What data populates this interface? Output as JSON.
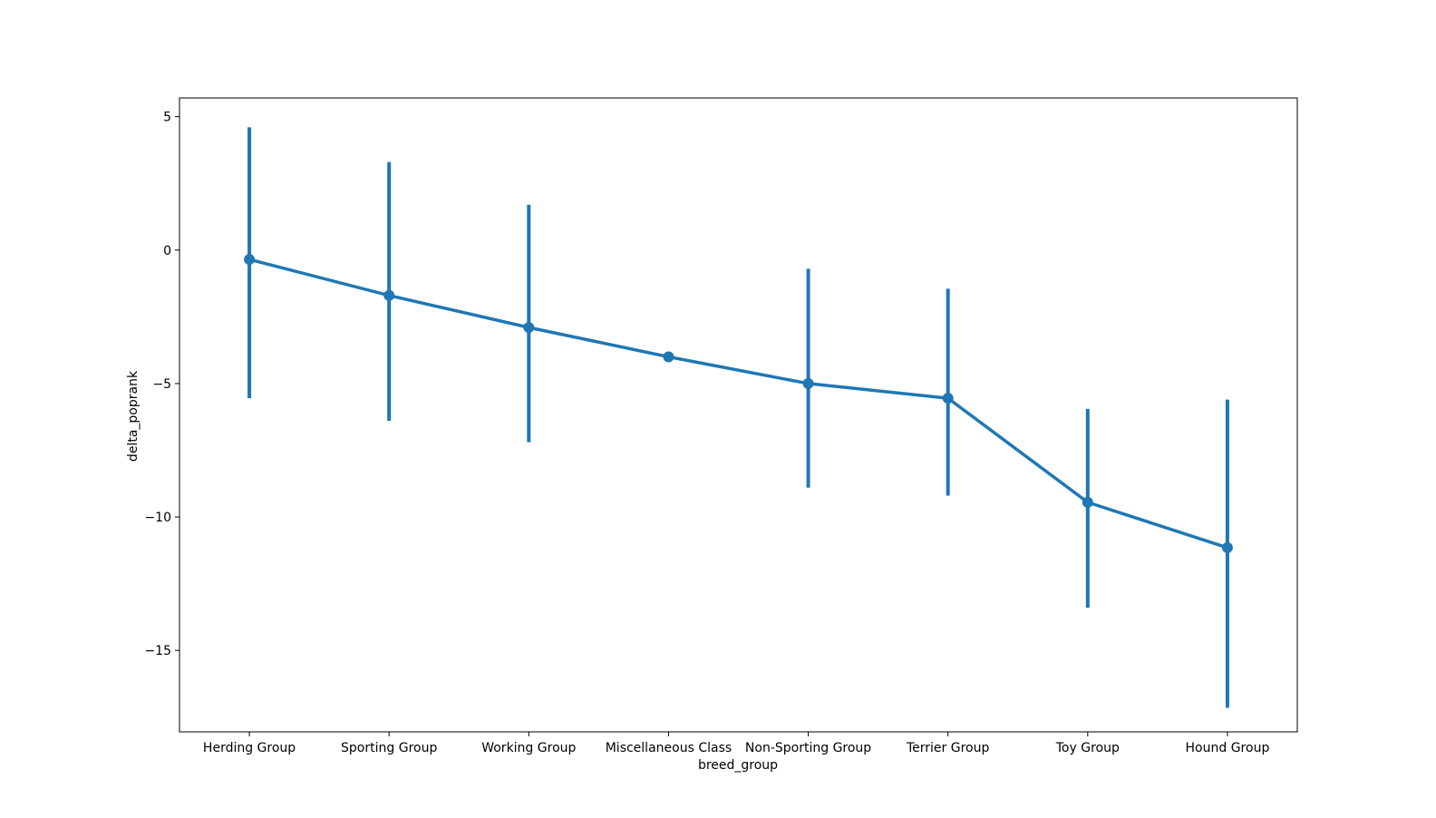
{
  "chart_data": {
    "type": "pointplot",
    "title": "",
    "xlabel": "breed_group",
    "ylabel": "delta_poprank",
    "categories": [
      "Herding Group",
      "Sporting Group",
      "Working Group",
      "Miscellaneous Class",
      "Non-Sporting Group",
      "Terrier Group",
      "Toy Group",
      "Hound Group"
    ],
    "series": [
      {
        "values": [
          -0.35,
          -1.7,
          -2.9,
          -4.0,
          -5.0,
          -5.55,
          -9.45,
          -11.15
        ],
        "ci_low": [
          -5.55,
          -6.4,
          -7.2,
          -4.0,
          -8.9,
          -9.2,
          -13.4,
          -17.15
        ],
        "ci_high": [
          4.6,
          3.3,
          1.7,
          -4.0,
          -0.7,
          -1.45,
          -5.95,
          -5.6
        ]
      }
    ],
    "ylim": [
      -18.05,
      5.7
    ],
    "yticks": [
      5,
      0,
      -5,
      -10,
      -15
    ],
    "ytick_labels": [
      "5",
      "0",
      "−5",
      "−10",
      "−15"
    ],
    "grid": false,
    "color": "#1f77b4"
  }
}
